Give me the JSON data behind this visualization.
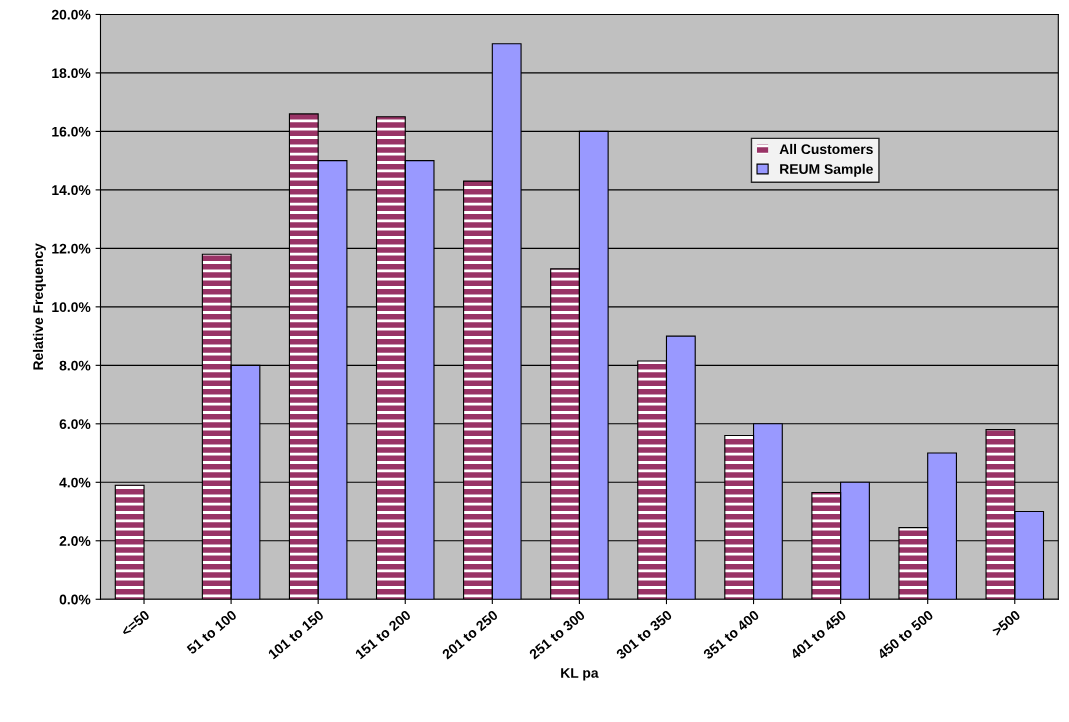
{
  "chart_data": {
    "type": "bar",
    "xlabel": "KL pa",
    "ylabel": "Relative Frequency",
    "categories": [
      "<=50",
      "51 to 100",
      "101 to 150",
      "151 to 200",
      "201 to 250",
      "251 to 300",
      "301 to 350",
      "351 to 400",
      "401 to 450",
      "450 to 500",
      ">500"
    ],
    "series": [
      {
        "name": "All Customers",
        "color": "#993366",
        "values": [
          3.9,
          11.8,
          16.6,
          16.5,
          14.3,
          11.3,
          8.15,
          5.6,
          3.65,
          2.45,
          5.8
        ]
      },
      {
        "name": "REUM Sample",
        "color": "#9999ff",
        "values": [
          null,
          8.0,
          15.0,
          15.0,
          19.0,
          16.0,
          9.0,
          6.0,
          4.0,
          5.0,
          3.0
        ]
      }
    ],
    "ylim": [
      0,
      20
    ],
    "yticks": [
      {
        "value": 0,
        "label": "0.0%"
      },
      {
        "value": 2,
        "label": "2.0%"
      },
      {
        "value": 4,
        "label": "4.0%"
      },
      {
        "value": 6,
        "label": "6.0%"
      },
      {
        "value": 8,
        "label": "8.0%"
      },
      {
        "value": 10,
        "label": "10.0%"
      },
      {
        "value": 12,
        "label": "12.0%"
      },
      {
        "value": 14,
        "label": "14.0%"
      },
      {
        "value": 16,
        "label": "16.0%"
      },
      {
        "value": 18,
        "label": "18.0%"
      },
      {
        "value": 20,
        "label": "20.0%"
      }
    ],
    "grid": "y",
    "legend": "top right"
  }
}
